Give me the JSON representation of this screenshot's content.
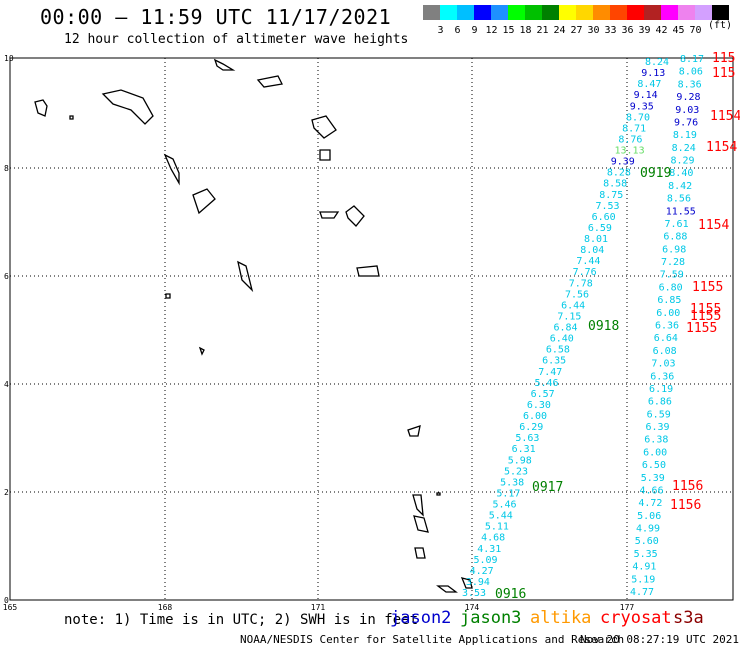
{
  "header": {
    "title": "00:00 – 11:59 UTC 11/17/2021",
    "subtitle": "12 hour collection of altimeter wave heights"
  },
  "legend": {
    "colors": [
      "#808080",
      "#00ffff",
      "#00bfff",
      "#0000ff",
      "#1e90ff",
      "#00ff00",
      "#00c000",
      "#008000",
      "#ffff00",
      "#ffd700",
      "#ff8c00",
      "#ff4500",
      "#ff0000",
      "#b22222",
      "#ff00ff",
      "#ee82ee",
      "#d3a0ff",
      "#000000"
    ],
    "labels": [
      "3",
      "6",
      "9",
      "12",
      "15",
      "18",
      "21",
      "24",
      "27",
      "30",
      "33",
      "36",
      "39",
      "42",
      "45",
      "70"
    ],
    "unit": "(ft)"
  },
  "map": {
    "x_ticks": [
      "165",
      "168",
      "171",
      "174",
      "177"
    ],
    "y_ticks": [
      "0",
      "2",
      "4",
      "6",
      "8",
      "10"
    ],
    "time_labels": [
      {
        "text": "0916",
        "color": "#008000"
      },
      {
        "text": "0917",
        "color": "#008000"
      },
      {
        "text": "0918",
        "color": "#008000"
      },
      {
        "text": "0919",
        "color": "#008000"
      },
      {
        "text": "115",
        "color": "#ff0000"
      },
      {
        "text": "115",
        "color": "#ff0000"
      },
      {
        "text": "1154",
        "color": "#ff0000"
      },
      {
        "text": "1154",
        "color": "#ff0000"
      },
      {
        "text": "1154",
        "color": "#ff0000"
      },
      {
        "text": "1155",
        "color": "#ff0000"
      },
      {
        "text": "1155",
        "color": "#ff0000"
      },
      {
        "text": "1155",
        "color": "#ff0000"
      },
      {
        "text": "1155",
        "color": "#ff0000"
      },
      {
        "text": "1156",
        "color": "#ff0000"
      },
      {
        "text": "1156",
        "color": "#ff0000"
      }
    ],
    "track_a": [
      "3.53",
      "3.94",
      "4.27",
      "5.09",
      "4.31",
      "4.68",
      "5.11",
      "5.44",
      "5.46",
      "5.17",
      "5.38",
      "5.23",
      "5.98",
      "6.31",
      "5.63",
      "6.29",
      "6.00",
      "6.30",
      "6.57",
      "5.46",
      "7.47",
      "6.35",
      "6.58",
      "6.40",
      "6.84",
      "7.15",
      "6.44",
      "7.56",
      "7.78",
      "7.76",
      "7.44",
      "8.04",
      "8.01",
      "6.59",
      "6.60",
      "7.53",
      "8.75",
      "8.58",
      "8.28",
      "9.39",
      "13.13",
      "8.76",
      "8.71",
      "8.70",
      "9.35",
      "9.14",
      "8.47",
      "9.13",
      "8.24"
    ],
    "track_b": [
      "4.77",
      "5.19",
      "4.91",
      "5.35",
      "5.60",
      "4.99",
      "5.06",
      "4.72",
      "4.66",
      "5.39",
      "6.50",
      "6.00",
      "6.38",
      "6.39",
      "6.59",
      "6.86",
      "6.19",
      "6.36",
      "7.03",
      "6.08",
      "6.64",
      "6.36",
      "6.00",
      "6.85",
      "6.80",
      "7.59",
      "7.28",
      "6.98",
      "6.88",
      "7.61",
      "11.55",
      "8.56",
      "8.42",
      "8.40",
      "8.29",
      "8.24",
      "8.19",
      "9.76",
      "9.03",
      "9.28",
      "8.36",
      "8.06",
      "8.17"
    ]
  },
  "footer": {
    "note": "note: 1) Time is in UTC; 2) SWH is in feet",
    "credit": "NOAA/NESDIS Center for Satellite Applications and Research",
    "timestamp": "Nov 20 08:27:19 UTC 2021",
    "satellites": [
      {
        "name": "jason2",
        "color": "#0000cc"
      },
      {
        "name": "jason3",
        "color": "#008000"
      },
      {
        "name": "altika",
        "color": "#ff9900"
      },
      {
        "name": "cryosat",
        "color": "#ff0000"
      },
      {
        "name": "s3a",
        "color": "#8b0000"
      }
    ]
  }
}
